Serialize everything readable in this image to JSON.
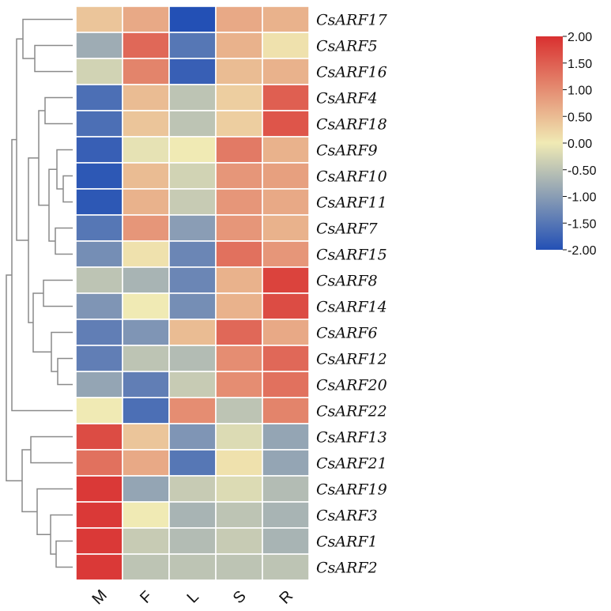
{
  "chart_data": {
    "type": "heatmap",
    "title": "",
    "columns": [
      "M",
      "F",
      "L",
      "S",
      "R"
    ],
    "rows": [
      "CsARF17",
      "CsARF5",
      "CsARF16",
      "CsARF4",
      "CsARF18",
      "CsARF9",
      "CsARF10",
      "CsARF11",
      "CsARF7",
      "CsARF15",
      "CsARF8",
      "CsARF14",
      "CsARF6",
      "CsARF12",
      "CsARF20",
      "CsARF22",
      "CsARF13",
      "CsARF21",
      "CsARF19",
      "CsARF3",
      "CsARF1",
      "CsARF2"
    ],
    "values": [
      [
        0.4,
        0.7,
        -2.0,
        0.7,
        0.6
      ],
      [
        -0.8,
        1.4,
        -1.5,
        0.6,
        0.1
      ],
      [
        -0.3,
        1.1,
        -1.8,
        0.5,
        0.6
      ],
      [
        -1.6,
        0.5,
        -0.5,
        0.3,
        1.5
      ],
      [
        -1.6,
        0.4,
        -0.5,
        0.3,
        1.6
      ],
      [
        -1.8,
        -0.1,
        0.0,
        1.2,
        0.6
      ],
      [
        -1.9,
        0.5,
        -0.3,
        0.9,
        0.8
      ],
      [
        -1.9,
        0.6,
        -0.4,
        0.9,
        0.7
      ],
      [
        -1.5,
        0.9,
        -1.0,
        0.9,
        0.6
      ],
      [
        -1.2,
        0.1,
        -1.3,
        1.3,
        0.9
      ],
      [
        -0.5,
        -0.7,
        -1.3,
        0.6,
        1.8
      ],
      [
        -1.1,
        0.0,
        -1.2,
        0.6,
        1.7
      ],
      [
        -1.4,
        -1.1,
        0.5,
        1.4,
        0.7
      ],
      [
        -1.4,
        -0.5,
        -0.6,
        1.0,
        1.4
      ],
      [
        -0.9,
        -1.4,
        -0.4,
        1.0,
        1.3
      ],
      [
        0.0,
        -1.6,
        1.0,
        -0.5,
        1.1
      ],
      [
        1.7,
        0.4,
        -1.1,
        -0.2,
        -0.9
      ],
      [
        1.3,
        0.7,
        -1.5,
        0.1,
        -0.9
      ],
      [
        1.9,
        -0.9,
        -0.4,
        -0.2,
        -0.6
      ],
      [
        1.9,
        0.0,
        -0.7,
        -0.5,
        -0.7
      ],
      [
        1.9,
        -0.4,
        -0.6,
        -0.4,
        -0.7
      ],
      [
        1.9,
        -0.5,
        -0.5,
        -0.5,
        -0.5
      ]
    ],
    "row_dendrogram": "shown on left",
    "colorbar": {
      "min": -2.0,
      "max": 2.0,
      "tick_labels": [
        "2.00",
        "1.50",
        "1.00",
        "0.50",
        "0.00",
        "-0.50",
        "-1.00",
        "-1.50",
        "-2.00"
      ],
      "colors": [
        "#2350b5",
        "#f0eab4",
        "#d93030"
      ],
      "position": "right"
    }
  }
}
